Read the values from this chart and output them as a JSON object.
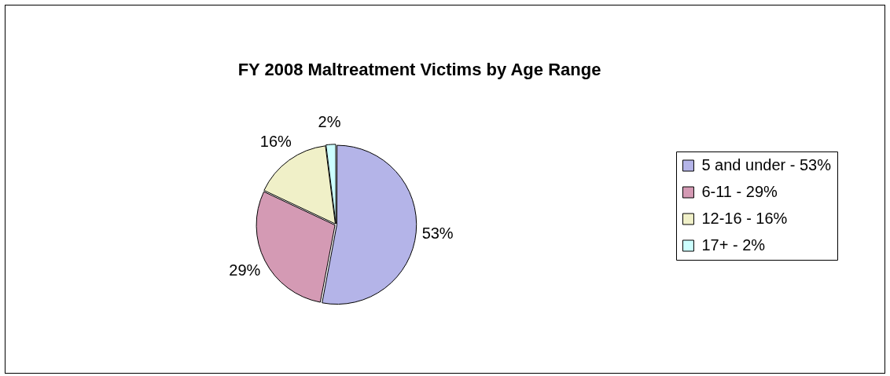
{
  "chart_data": {
    "type": "pie",
    "title": "FY 2008 Maltreatment Victims by Age Range",
    "categories": [
      "5 and under - 53%",
      "6-11 - 29%",
      "12-16 - 16%",
      "17+ - 2%"
    ],
    "values": [
      53,
      29,
      16,
      2
    ],
    "colors": [
      "#b4b4e8",
      "#d49ab4",
      "#f0f0c8",
      "#ccffff"
    ],
    "value_labels": [
      "53%",
      "29%",
      "16%",
      "2%"
    ],
    "legend": "right"
  }
}
